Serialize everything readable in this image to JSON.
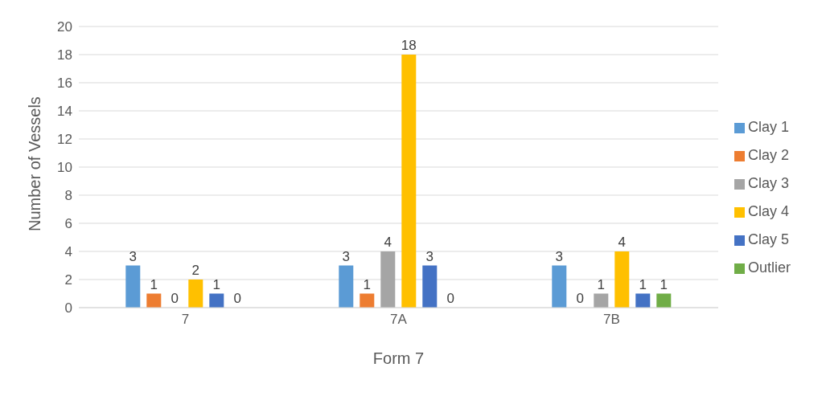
{
  "chart_data": {
    "type": "bar",
    "xlabel": "Form 7",
    "ylabel": "Number of Vessels",
    "categories": [
      "7",
      "7A",
      "7B"
    ],
    "series": [
      {
        "name": "Clay 1",
        "color": "#5b9bd5",
        "values": [
          3,
          3,
          3
        ]
      },
      {
        "name": "Clay 2",
        "color": "#ed7d31",
        "values": [
          1,
          1,
          0
        ]
      },
      {
        "name": "Clay 3",
        "color": "#a5a5a5",
        "values": [
          0,
          4,
          1
        ]
      },
      {
        "name": "Clay 4",
        "color": "#ffc000",
        "values": [
          2,
          18,
          4
        ]
      },
      {
        "name": "Clay 5",
        "color": "#4472c4",
        "values": [
          1,
          3,
          1
        ]
      },
      {
        "name": "Outlier",
        "color": "#70ad47",
        "values": [
          0,
          0,
          1
        ]
      }
    ],
    "ylim": [
      0,
      20
    ],
    "yticks": [
      0,
      2,
      4,
      6,
      8,
      10,
      12,
      14,
      16,
      18,
      20
    ],
    "grid": "y",
    "legend": "right",
    "data_labels": true
  }
}
